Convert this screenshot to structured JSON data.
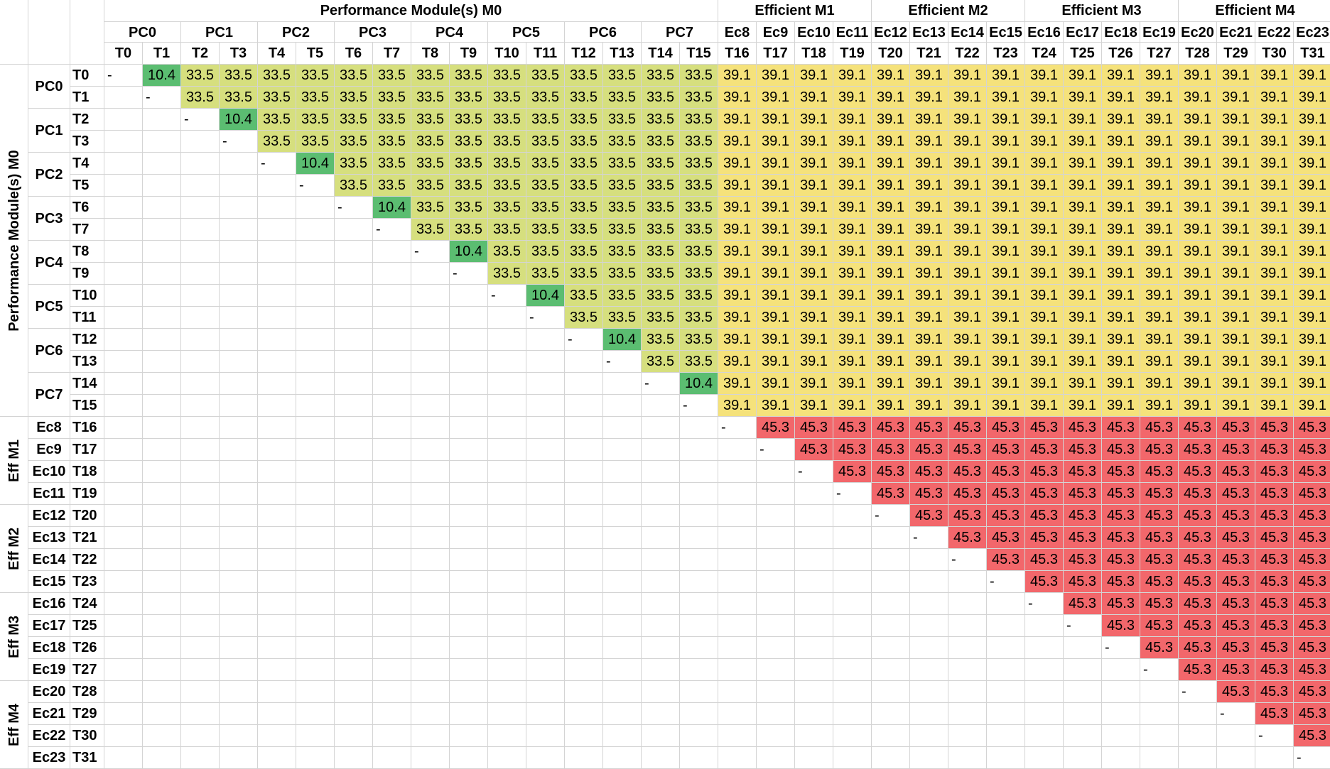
{
  "colors": {
    "diagonal_pair": "#5bbd71",
    "performance_pair": "#d6df7e",
    "cross_module": "#f5e27b",
    "efficient_pair": "#f2676b",
    "gridline": "#d4d4d4"
  },
  "column_groups": [
    {
      "label": "Performance Module(s) M0",
      "span": 16
    },
    {
      "label": "Efficient M1",
      "span": 4
    },
    {
      "label": "Efficient M2",
      "span": 4
    },
    {
      "label": "Efficient M3",
      "span": 4
    },
    {
      "label": "Efficient M4",
      "span": 4
    }
  ],
  "row_groups": [
    {
      "label": "Performance Module(s) M0",
      "span": 16
    },
    {
      "label": "Eff M1",
      "span": 4
    },
    {
      "label": "Eff M2",
      "span": 4
    },
    {
      "label": "Eff M3",
      "span": 4
    },
    {
      "label": "Eff M4",
      "span": 4
    }
  ],
  "cores": [
    "PC0",
    "PC1",
    "PC2",
    "PC3",
    "PC4",
    "PC5",
    "PC6",
    "PC7",
    "Ec8",
    "Ec9",
    "Ec10",
    "Ec11",
    "Ec12",
    "Ec13",
    "Ec14",
    "Ec15",
    "Ec16",
    "Ec17",
    "Ec18",
    "Ec19",
    "Ec20",
    "Ec21",
    "Ec22",
    "Ec23"
  ],
  "threads": [
    "T0",
    "T1",
    "T2",
    "T3",
    "T4",
    "T5",
    "T6",
    "T7",
    "T8",
    "T9",
    "T10",
    "T11",
    "T12",
    "T13",
    "T14",
    "T15",
    "T16",
    "T17",
    "T18",
    "T19",
    "T20",
    "T21",
    "T22",
    "T23",
    "T24",
    "T25",
    "T26",
    "T27",
    "T28",
    "T29",
    "T30",
    "T31"
  ],
  "diagonal_marker": "-",
  "values": {
    "same_core": "10.4",
    "performance_pair": "33.5",
    "cross_module": "39.1",
    "efficient_pair": "45.3"
  }
}
